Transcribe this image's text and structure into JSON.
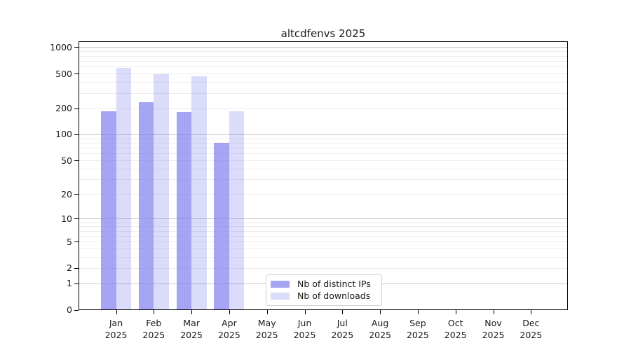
{
  "chart_data": {
    "type": "bar",
    "title": "altcdfenvs 2025",
    "year_label": "2025",
    "categories": [
      "Jan",
      "Feb",
      "Mar",
      "Apr",
      "May",
      "Jun",
      "Jul",
      "Aug",
      "Sep",
      "Oct",
      "Nov",
      "Dec"
    ],
    "series": [
      {
        "name": "Nb of distinct IPs",
        "color": "#7a7aee",
        "alpha": 0.68,
        "color_on_white": "#a4a4f0",
        "values": [
          186,
          237,
          183,
          80,
          null,
          null,
          null,
          null,
          null,
          null,
          null,
          null
        ]
      },
      {
        "name": "Nb of downloads",
        "color": "#7a7aee",
        "alpha": 0.27,
        "color_on_white": "#dbdbf8",
        "values": [
          585,
          495,
          469,
          186,
          null,
          null,
          null,
          null,
          null,
          null,
          null,
          null
        ]
      }
    ],
    "y_axis": {
      "ticks": [
        0,
        1,
        2,
        5,
        10,
        20,
        50,
        100,
        200,
        500,
        1000
      ],
      "scale": "log10(value+1)",
      "range": [
        0,
        1180
      ]
    },
    "x_axis": {
      "tick_labels_line2": "2025"
    },
    "grid": {
      "minor_color": "#ececec",
      "major_color": "#c9c9c9",
      "major_at": [
        1,
        10,
        100,
        1000
      ],
      "minor_at": [
        2,
        3,
        4,
        5,
        6,
        7,
        8,
        9,
        20,
        30,
        40,
        50,
        60,
        70,
        80,
        90,
        200,
        300,
        400,
        500,
        600,
        700,
        800,
        900
      ]
    },
    "legend": {
      "position": "lower-center"
    }
  }
}
